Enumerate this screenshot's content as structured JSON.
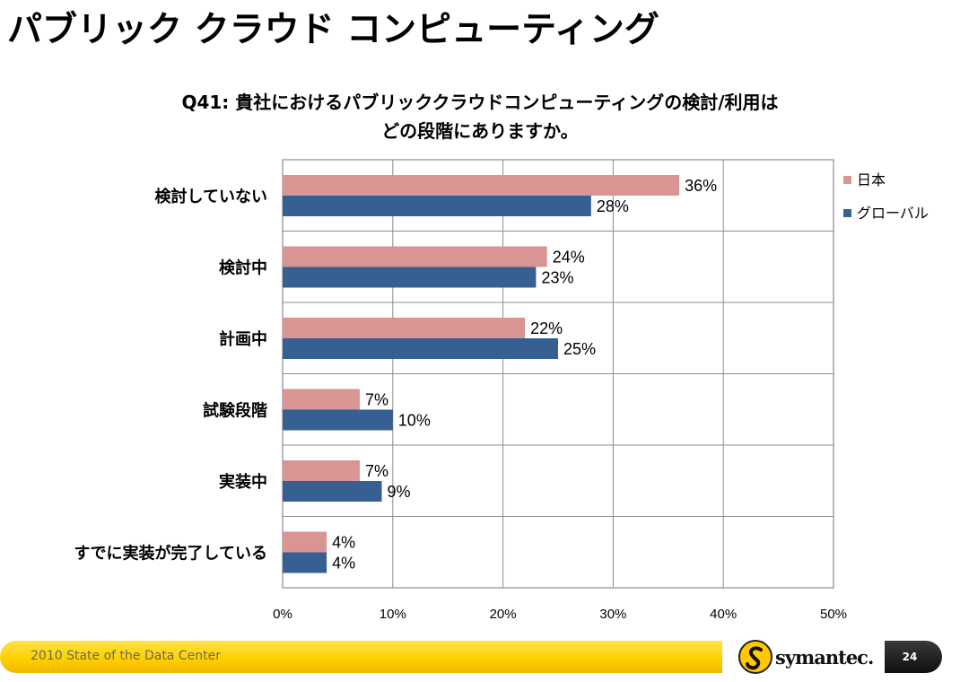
{
  "slide": {
    "title": "パブリック クラウド コンピューティング",
    "footer_text": "2010 State of the Data Center",
    "brand": "symantec.",
    "page_number": "24"
  },
  "colors": {
    "japan": "#d99594",
    "global": "#376092",
    "grid": "#8c8c8c",
    "footer": "#ffd000"
  },
  "chart_data": {
    "type": "bar",
    "orientation": "horizontal",
    "title_lines": [
      "Q41: 貴社におけるパブリッククラウドコンピューティングの検討/利用は",
      "どの段階にありますか。"
    ],
    "categories": [
      "検討していない",
      "検討中",
      "計画中",
      "試験段階",
      "実装中",
      "すでに実装が完了している"
    ],
    "series": [
      {
        "name": "日本",
        "values": [
          36,
          24,
          22,
          7,
          7,
          4
        ],
        "labels": [
          "36%",
          "24%",
          "22%",
          "7%",
          "7%",
          "4%"
        ]
      },
      {
        "name": "グローバル",
        "values": [
          28,
          23,
          25,
          10,
          9,
          4
        ],
        "labels": [
          "28%",
          "23%",
          "25%",
          "10%",
          "9%",
          "4%"
        ]
      }
    ],
    "xlim": [
      0,
      50
    ],
    "xticks": [
      "0%",
      "10%",
      "20%",
      "30%",
      "40%",
      "50%"
    ],
    "grid": true,
    "legend_position": "right"
  }
}
